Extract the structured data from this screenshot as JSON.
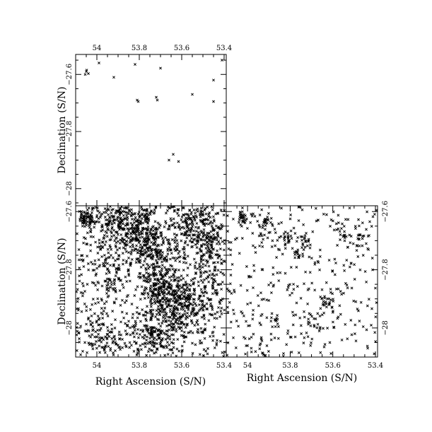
{
  "figure": {
    "xlabel": "Right Ascension (S/N)",
    "ylabel": "Declination (S/N)"
  },
  "chart_data": [
    {
      "type": "scatter",
      "panel": "top-left",
      "xlim": [
        54.1,
        53.39
      ],
      "ylim": [
        -28.06,
        -27.53
      ],
      "xticks": [
        54.0,
        53.8,
        53.6,
        53.4
      ],
      "xtick_labels": [
        "54",
        "53.8",
        "53.6",
        "53.4"
      ],
      "x_tick_label_position": "top",
      "yticks": [
        -27.6,
        -27.8,
        -28.0
      ],
      "ytick_labels": [
        "-27.6",
        "-27.8",
        "-28"
      ],
      "y_tick_label_position": "left",
      "ylabel": "Declination (S/N)",
      "marker": "x",
      "points": [
        [
          54.05,
          -27.59
        ],
        [
          54.04,
          -27.597
        ],
        [
          54.055,
          -27.6
        ],
        [
          54.048,
          -27.585
        ],
        [
          53.99,
          -27.56
        ],
        [
          53.82,
          -27.565
        ],
        [
          53.7,
          -27.578
        ],
        [
          53.92,
          -27.61
        ],
        [
          53.45,
          -27.62
        ],
        [
          53.81,
          -27.69
        ],
        [
          53.805,
          -27.695
        ],
        [
          53.715,
          -27.69
        ],
        [
          53.72,
          -27.68
        ],
        [
          53.55,
          -27.67
        ],
        [
          53.45,
          -27.695
        ],
        [
          53.64,
          -27.88
        ],
        [
          53.66,
          -27.9
        ],
        [
          53.615,
          -27.905
        ],
        [
          53.41,
          -27.55
        ]
      ]
    },
    {
      "type": "scatter",
      "panel": "bottom-left",
      "xlim": [
        54.1,
        53.39
      ],
      "ylim": [
        -28.1,
        -27.58
      ],
      "xticks": [
        54.0,
        53.8,
        53.6,
        53.4
      ],
      "xtick_labels": [
        "54",
        "53.8",
        "53.6",
        "53.4"
      ],
      "x_tick_label_position": "bottom",
      "yticks": [
        -27.6,
        -27.8,
        -28.0
      ],
      "ytick_labels": [
        "-27.6",
        "-27.8",
        "-28"
      ],
      "y_tick_label_position": "left",
      "xlabel": "Right Ascension (S/N)",
      "ylabel": "Declination (S/N)",
      "marker": "x",
      "density": "very dense",
      "clusters": [
        {
          "x": 54.05,
          "y": -27.62,
          "sx": 0.02,
          "sy": 0.02,
          "n": 70
        },
        {
          "x": 53.92,
          "y": -27.63,
          "sx": 0.05,
          "sy": 0.04,
          "n": 140
        },
        {
          "x": 53.8,
          "y": -27.66,
          "sx": 0.05,
          "sy": 0.05,
          "n": 220
        },
        {
          "x": 53.72,
          "y": -27.73,
          "sx": 0.05,
          "sy": 0.04,
          "n": 160
        },
        {
          "x": 53.55,
          "y": -27.64,
          "sx": 0.05,
          "sy": 0.04,
          "n": 150
        },
        {
          "x": 53.47,
          "y": -27.72,
          "sx": 0.04,
          "sy": 0.05,
          "n": 120
        },
        {
          "x": 53.7,
          "y": -27.86,
          "sx": 0.05,
          "sy": 0.04,
          "n": 200
        },
        {
          "x": 53.62,
          "y": -27.92,
          "sx": 0.05,
          "sy": 0.05,
          "n": 200
        },
        {
          "x": 53.72,
          "y": -28.02,
          "sx": 0.06,
          "sy": 0.04,
          "n": 180
        },
        {
          "x": 53.95,
          "y": -27.8,
          "sx": 0.06,
          "sy": 0.06,
          "n": 90
        },
        {
          "x": 53.5,
          "y": -27.9,
          "sx": 0.05,
          "sy": 0.06,
          "n": 110
        },
        {
          "x": 53.98,
          "y": -28.03,
          "sx": 0.06,
          "sy": 0.04,
          "n": 80
        }
      ],
      "background_points": 600,
      "seed": 11
    },
    {
      "type": "scatter",
      "panel": "bottom-right",
      "xlim": [
        54.1,
        53.39
      ],
      "ylim": [
        -28.1,
        -27.58
      ],
      "xticks": [
        54.0,
        53.8,
        53.6,
        53.4
      ],
      "xtick_labels": [
        "54",
        "53.8",
        "53.6",
        "53.4"
      ],
      "x_tick_label_position": "bottom",
      "yticks": [
        -27.6,
        -27.8,
        -28.0
      ],
      "ytick_labels": [
        "-27.6",
        "-27.8",
        "-28"
      ],
      "y_tick_label_position": "right",
      "xlabel": "Right Ascension (S/N)",
      "marker": "x",
      "density": "sparse",
      "clusters": [
        {
          "x": 54.02,
          "y": -27.62,
          "sx": 0.012,
          "sy": 0.01,
          "n": 25
        },
        {
          "x": 53.92,
          "y": -27.64,
          "sx": 0.01,
          "sy": 0.01,
          "n": 15
        },
        {
          "x": 53.82,
          "y": -27.69,
          "sx": 0.015,
          "sy": 0.015,
          "n": 20
        },
        {
          "x": 53.74,
          "y": -27.7,
          "sx": 0.012,
          "sy": 0.012,
          "n": 15
        },
        {
          "x": 53.76,
          "y": -27.74,
          "sx": 0.012,
          "sy": 0.012,
          "n": 15
        },
        {
          "x": 53.48,
          "y": -27.69,
          "sx": 0.02,
          "sy": 0.015,
          "n": 15
        },
        {
          "x": 53.62,
          "y": -27.92,
          "sx": 0.02,
          "sy": 0.02,
          "n": 18
        },
        {
          "x": 53.68,
          "y": -27.98,
          "sx": 0.02,
          "sy": 0.02,
          "n": 15
        },
        {
          "x": 53.86,
          "y": -27.97,
          "sx": 0.015,
          "sy": 0.015,
          "n": 12
        },
        {
          "x": 53.55,
          "y": -27.66,
          "sx": 0.02,
          "sy": 0.02,
          "n": 12
        }
      ],
      "background_points": 380,
      "seed": 29
    }
  ]
}
